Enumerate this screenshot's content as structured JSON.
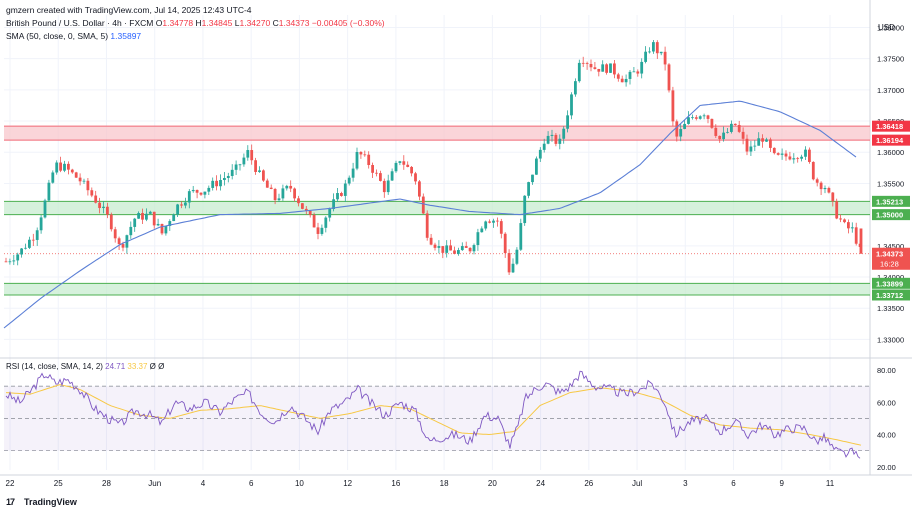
{
  "header": {
    "creator_line": "gmzern created with TradingView.com, Jul 14, 2025 12:43 UTC-4",
    "symbol": "British Pound / U.S. Dollar · 4h · FXCM",
    "o_label": "O",
    "o_value": "1.34778",
    "h_label": "H",
    "h_value": "1.34845",
    "l_label": "L",
    "l_value": "1.34270",
    "c_label": "C",
    "c_value": "1.34373",
    "change": "−0.00405 (−0.30%)",
    "sma_label": "SMA (50, close, 0, SMA, 5)",
    "sma_value": "1.35897"
  },
  "currency": "USD",
  "footer": {
    "brand": "TradingView"
  },
  "colors": {
    "up": "#26a69a",
    "down": "#ef5350",
    "sma": "#5b7fd6",
    "rsi": "#7e57c2",
    "rsi_ma": "#f7c844",
    "res_zone": "#f8c7cc",
    "sup_zone": "#c8ecd0",
    "grid": "#f0f3fa"
  },
  "chart_data": [
    {
      "type": "candlestick",
      "title": "British Pound / U.S. Dollar · 4h · FXCM",
      "ylim": [
        1.3275,
        1.382
      ],
      "y_ticks": [
        "1.38000",
        "1.37500",
        "1.37000",
        "1.36500",
        "1.36000",
        "1.35500",
        "1.35000",
        "1.34500",
        "1.34000",
        "1.33500",
        "1.33000"
      ],
      "x_ticks": [
        "22",
        "25",
        "28",
        "Jun",
        "4",
        "6",
        "10",
        "12",
        "16",
        "18",
        "20",
        "24",
        "26",
        "Jul",
        "3",
        "6",
        "9",
        "11"
      ],
      "zones": [
        {
          "kind": "resistance",
          "from": 1.36194,
          "to": 1.36418,
          "labels": [
            "1.36418",
            "1.36194"
          ]
        },
        {
          "kind": "support",
          "from": 1.35,
          "to": 1.35213,
          "labels": [
            "1.35213",
            "1.35000"
          ]
        },
        {
          "kind": "support",
          "from": 1.33712,
          "to": 1.33899,
          "labels": [
            "1.33899",
            "1.33712"
          ]
        }
      ],
      "last_price": {
        "value": 1.34373,
        "label": "1.34373",
        "countdown": "16:28"
      },
      "sma_anchors": [
        [
          0,
          1.3313
        ],
        [
          40,
          1.3365
        ],
        [
          80,
          1.341
        ],
        [
          120,
          1.3452
        ],
        [
          160,
          1.348
        ],
        [
          220,
          1.35
        ],
        [
          280,
          1.3502
        ],
        [
          330,
          1.351
        ],
        [
          400,
          1.3525
        ],
        [
          430,
          1.3515
        ],
        [
          470,
          1.3505
        ],
        [
          520,
          1.35
        ],
        [
          560,
          1.351
        ],
        [
          600,
          1.3535
        ],
        [
          640,
          1.358
        ],
        [
          670,
          1.363
        ],
        [
          700,
          1.3675
        ],
        [
          740,
          1.3682
        ],
        [
          780,
          1.3665
        ],
        [
          820,
          1.3635
        ],
        [
          858,
          1.359
        ]
      ],
      "price_anchors": [
        [
          6,
          1.3425
        ],
        [
          20,
          1.344
        ],
        [
          35,
          1.347
        ],
        [
          45,
          1.352
        ],
        [
          55,
          1.358
        ],
        [
          65,
          1.3575
        ],
        [
          80,
          1.3555
        ],
        [
          95,
          1.3525
        ],
        [
          110,
          1.349
        ],
        [
          120,
          1.3445
        ],
        [
          135,
          1.3495
        ],
        [
          150,
          1.35
        ],
        [
          162,
          1.347
        ],
        [
          175,
          1.351
        ],
        [
          190,
          1.3535
        ],
        [
          205,
          1.354
        ],
        [
          220,
          1.3555
        ],
        [
          235,
          1.357
        ],
        [
          248,
          1.36
        ],
        [
          262,
          1.3555
        ],
        [
          275,
          1.3525
        ],
        [
          290,
          1.3545
        ],
        [
          305,
          1.3505
        ],
        [
          318,
          1.3475
        ],
        [
          330,
          1.351
        ],
        [
          345,
          1.3545
        ],
        [
          358,
          1.36
        ],
        [
          370,
          1.358
        ],
        [
          385,
          1.354
        ],
        [
          400,
          1.359
        ],
        [
          415,
          1.356
        ],
        [
          428,
          1.3465
        ],
        [
          440,
          1.3445
        ],
        [
          455,
          1.344
        ],
        [
          470,
          1.3445
        ],
        [
          485,
          1.3495
        ],
        [
          498,
          1.349
        ],
        [
          510,
          1.3405
        ],
        [
          518,
          1.345
        ],
        [
          525,
          1.353
        ],
        [
          535,
          1.358
        ],
        [
          545,
          1.3625
        ],
        [
          560,
          1.3615
        ],
        [
          570,
          1.368
        ],
        [
          580,
          1.3755
        ],
        [
          595,
          1.3735
        ],
        [
          610,
          1.3735
        ],
        [
          625,
          1.3715
        ],
        [
          640,
          1.3735
        ],
        [
          652,
          1.3775
        ],
        [
          665,
          1.3745
        ],
        [
          675,
          1.362
        ],
        [
          690,
          1.3655
        ],
        [
          705,
          1.3665
        ],
        [
          720,
          1.362
        ],
        [
          735,
          1.3645
        ],
        [
          748,
          1.36
        ],
        [
          762,
          1.3625
        ],
        [
          775,
          1.359
        ],
        [
          790,
          1.3595
        ],
        [
          805,
          1.36
        ],
        [
          815,
          1.3555
        ],
        [
          825,
          1.3545
        ],
        [
          835,
          1.3505
        ],
        [
          845,
          1.348
        ],
        [
          853,
          1.3475
        ],
        [
          861,
          1.3437
        ]
      ]
    },
    {
      "type": "line",
      "title": "RSI (14, close, SMA, 14, 2)",
      "series": [
        {
          "name": "RSI",
          "last": "24.71"
        },
        {
          "name": "RSI-based MA",
          "last": "33.37"
        }
      ],
      "extra_labels": [
        "Ø",
        "Ø"
      ],
      "ylim": [
        18,
        85
      ],
      "y_ticks": [
        "80.00",
        "60.00",
        "40.00",
        "20.00"
      ],
      "bands": [
        70,
        50,
        30
      ],
      "rsi_anchors": [
        [
          6,
          65
        ],
        [
          20,
          60
        ],
        [
          32,
          68
        ],
        [
          45,
          78
        ],
        [
          55,
          72
        ],
        [
          68,
          74
        ],
        [
          80,
          68
        ],
        [
          95,
          56
        ],
        [
          108,
          50
        ],
        [
          120,
          46
        ],
        [
          135,
          55
        ],
        [
          150,
          52
        ],
        [
          162,
          47
        ],
        [
          175,
          60
        ],
        [
          190,
          56
        ],
        [
          205,
          60
        ],
        [
          220,
          54
        ],
        [
          235,
          62
        ],
        [
          248,
          66
        ],
        [
          262,
          53
        ],
        [
          275,
          48
        ],
        [
          290,
          58
        ],
        [
          305,
          50
        ],
        [
          318,
          42
        ],
        [
          330,
          55
        ],
        [
          345,
          60
        ],
        [
          358,
          68
        ],
        [
          370,
          60
        ],
        [
          385,
          52
        ],
        [
          400,
          60
        ],
        [
          415,
          55
        ],
        [
          428,
          36
        ],
        [
          440,
          38
        ],
        [
          455,
          40
        ],
        [
          470,
          36
        ],
        [
          485,
          52
        ],
        [
          498,
          50
        ],
        [
          510,
          33
        ],
        [
          518,
          45
        ],
        [
          525,
          62
        ],
        [
          535,
          68
        ],
        [
          545,
          72
        ],
        [
          560,
          66
        ],
        [
          570,
          70
        ],
        [
          580,
          78
        ],
        [
          595,
          70
        ],
        [
          610,
          68
        ],
        [
          625,
          65
        ],
        [
          640,
          68
        ],
        [
          652,
          72
        ],
        [
          665,
          60
        ],
        [
          675,
          40
        ],
        [
          690,
          48
        ],
        [
          705,
          50
        ],
        [
          720,
          42
        ],
        [
          735,
          48
        ],
        [
          748,
          40
        ],
        [
          762,
          46
        ],
        [
          775,
          40
        ],
        [
          790,
          44
        ],
        [
          805,
          44
        ],
        [
          815,
          36
        ],
        [
          825,
          38
        ],
        [
          835,
          30
        ],
        [
          845,
          28
        ],
        [
          853,
          29
        ],
        [
          861,
          24.71
        ]
      ],
      "ma_anchors": [
        [
          6,
          66
        ],
        [
          30,
          65
        ],
        [
          60,
          71
        ],
        [
          80,
          68
        ],
        [
          110,
          58
        ],
        [
          140,
          52
        ],
        [
          170,
          50
        ],
        [
          200,
          55
        ],
        [
          230,
          56
        ],
        [
          260,
          58
        ],
        [
          290,
          54
        ],
        [
          320,
          50
        ],
        [
          350,
          53
        ],
        [
          380,
          58
        ],
        [
          410,
          56
        ],
        [
          430,
          50
        ],
        [
          460,
          41
        ],
        [
          490,
          40
        ],
        [
          515,
          42
        ],
        [
          540,
          58
        ],
        [
          570,
          66
        ],
        [
          600,
          69
        ],
        [
          630,
          67
        ],
        [
          660,
          62
        ],
        [
          690,
          52
        ],
        [
          720,
          46
        ],
        [
          750,
          44
        ],
        [
          780,
          43
        ],
        [
          810,
          40
        ],
        [
          835,
          37
        ],
        [
          861,
          33.37
        ]
      ]
    }
  ]
}
